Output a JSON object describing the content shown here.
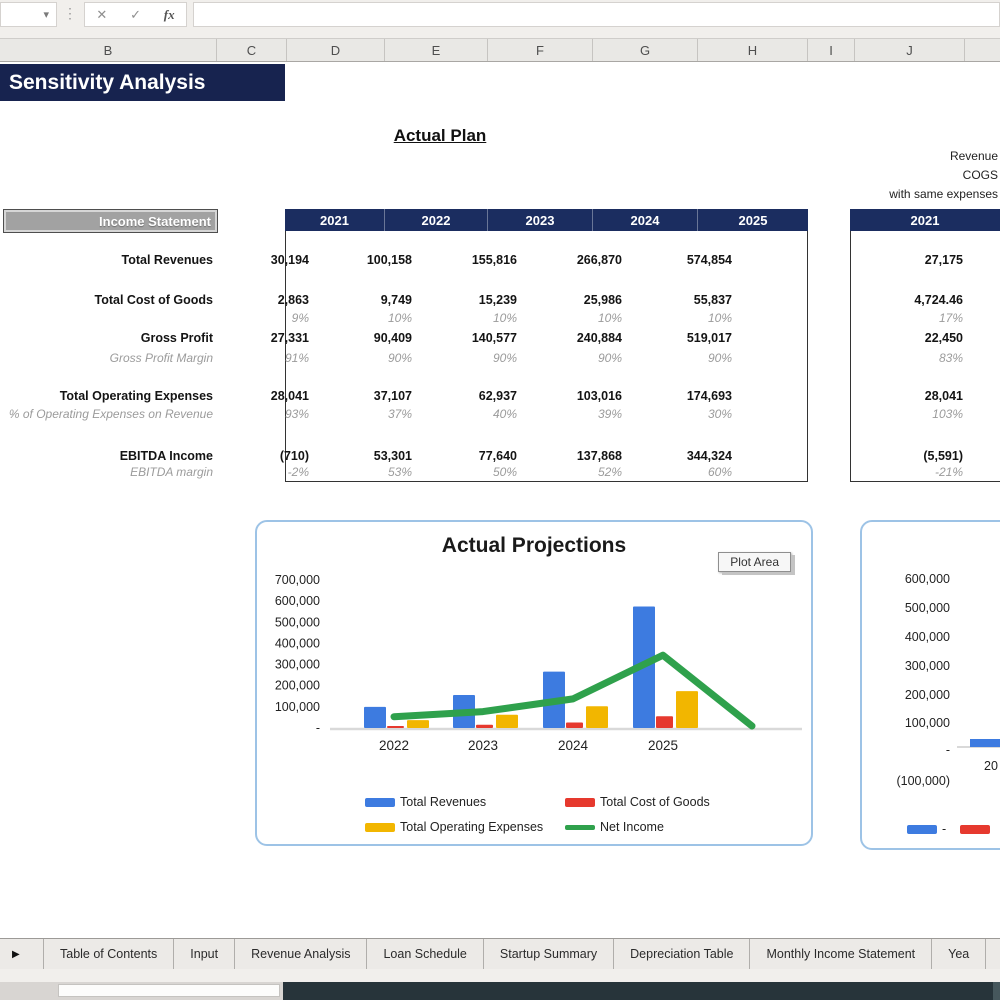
{
  "icons": {
    "name_box_dropdown": "▾",
    "separator_dots": "⋮",
    "cancel": "✕",
    "enter": "✓",
    "function": "fx",
    "tab_nav_right": "▶"
  },
  "formula_bar": {
    "name_box_value": "",
    "formula_value": ""
  },
  "grid": {
    "columns": [
      "B",
      "C",
      "D",
      "E",
      "F",
      "G",
      "H",
      "I",
      "J",
      ""
    ]
  },
  "page": {
    "title": "Sensitivity Analysis",
    "section_heading": "Actual Plan",
    "scenario_note_lines": [
      "Revenue",
      "COGS",
      "with same expenses"
    ]
  },
  "income_statement": {
    "header_label": "Income Statement",
    "years": [
      "2021",
      "2022",
      "2023",
      "2024",
      "2025"
    ],
    "rows": [
      {
        "label": "Total Revenues",
        "kind": "bold",
        "values": [
          "30,194",
          "100,158",
          "155,816",
          "266,870",
          "574,854"
        ]
      },
      {
        "label": "Total Cost of Goods",
        "kind": "bold",
        "values": [
          "2,863",
          "9,749",
          "15,239",
          "25,986",
          "55,837"
        ]
      },
      {
        "label": "",
        "kind": "italic",
        "values": [
          "9%",
          "10%",
          "10%",
          "10%",
          "10%"
        ]
      },
      {
        "label": "Gross Profit",
        "kind": "bold",
        "values": [
          "27,331",
          "90,409",
          "140,577",
          "240,884",
          "519,017"
        ]
      },
      {
        "label": "Gross Profit Margin",
        "kind": "italic",
        "values": [
          "91%",
          "90%",
          "90%",
          "90%",
          "90%"
        ]
      },
      {
        "label": "Total Operating Expenses",
        "kind": "bold",
        "values": [
          "28,041",
          "37,107",
          "62,937",
          "103,016",
          "174,693"
        ]
      },
      {
        "label": "% of Operating Expenses on Revenue",
        "kind": "italic",
        "values": [
          "93%",
          "37%",
          "40%",
          "39%",
          "30%"
        ]
      },
      {
        "label": "EBITDA Income",
        "kind": "bold",
        "values": [
          "(710)",
          "53,301",
          "77,640",
          "137,868",
          "344,324"
        ]
      },
      {
        "label": "EBITDA margin",
        "kind": "italic",
        "values": [
          "-2%",
          "53%",
          "50%",
          "52%",
          "60%"
        ]
      }
    ]
  },
  "scenario_table": {
    "year": "2021",
    "rows": [
      {
        "kind": "bold",
        "value": "27,175"
      },
      {
        "kind": "bold",
        "value": "4,724.46"
      },
      {
        "kind": "italic",
        "value": "17%"
      },
      {
        "kind": "bold",
        "value": "22,450"
      },
      {
        "kind": "italic",
        "value": "83%"
      },
      {
        "kind": "bold",
        "value": "28,041"
      },
      {
        "kind": "italic",
        "value": "103%"
      },
      {
        "kind": "bold",
        "value": "(5,591)"
      },
      {
        "kind": "italic",
        "value": "-21%"
      }
    ]
  },
  "chart_data": [
    {
      "type": "bar",
      "title": "Actual Projections",
      "plot_area_tooltip": "Plot Area",
      "categories": [
        "2022",
        "2023",
        "2024",
        "2025"
      ],
      "series": [
        {
          "name": "Total Revenues",
          "kind": "bar",
          "color": "#3D7BE0",
          "values": [
            100158,
            155816,
            266870,
            574854
          ]
        },
        {
          "name": "Total Cost of Goods",
          "kind": "bar",
          "color": "#E6392E",
          "values": [
            9749,
            15239,
            25986,
            55837
          ]
        },
        {
          "name": "Total Operating Expenses",
          "kind": "bar",
          "color": "#F2B600",
          "values": [
            37107,
            62937,
            103016,
            174693
          ]
        },
        {
          "name": "Net Income",
          "kind": "line",
          "color": "#2FA14C",
          "values": [
            53301,
            77640,
            137868,
            344324
          ],
          "ends_at_zero": true
        }
      ],
      "y_ticks": [
        "700,000",
        "600,000",
        "500,000",
        "400,000",
        "300,000",
        "200,000",
        "100,000",
        "-"
      ],
      "ylim": [
        0,
        700000
      ],
      "grid": false,
      "legend_position": "bottom"
    },
    {
      "type": "bar",
      "title": "",
      "y_ticks": [
        "600,000",
        "500,000",
        "400,000",
        "300,000",
        "200,000",
        "100,000",
        "-",
        "(100,000)"
      ],
      "ylim": [
        -100000,
        600000
      ],
      "categories_visible": [
        "20"
      ],
      "visible_bar": {
        "series": "Total Revenues",
        "color": "#3D7BE0",
        "value": 27175
      },
      "legend_visible": [
        {
          "color": "#3D7BE0",
          "label": "-"
        },
        {
          "color": "#E6392E",
          "label": ""
        }
      ]
    }
  ],
  "sheet_tabs": {
    "items": [
      "Table of Contents",
      "Input",
      "Revenue Analysis",
      "Loan Schedule",
      "Startup Summary",
      "Depreciation Table",
      "Monthly Income Statement",
      "Yea"
    ]
  },
  "colors": {
    "title_navy": "#17234F",
    "table_header_navy": "#1B2D60",
    "chart_border_blue": "#9DC3E6",
    "bar_blue": "#3D7BE0",
    "bar_red": "#E6392E",
    "bar_yellow": "#F2B600",
    "line_green": "#2FA14C",
    "muted_gray_text": "#9B9B9B"
  }
}
